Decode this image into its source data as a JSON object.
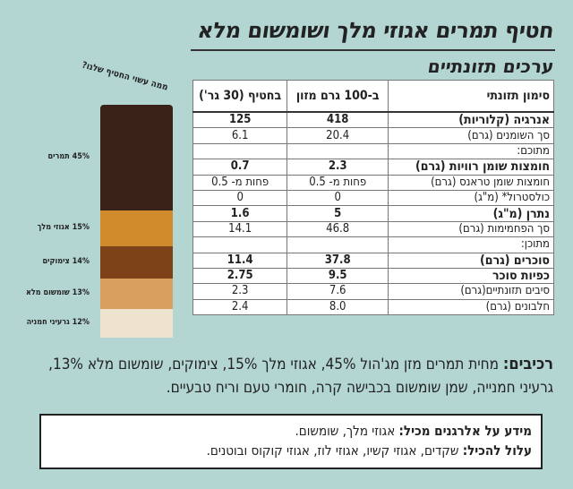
{
  "title": "חטיף תמרים אגוזי מלך ושומשום מלא",
  "subtitle": "ערכים תזונתיים",
  "table": {
    "headers": [
      "סימון תזונתי",
      "ב-100 גרם מזון",
      "בחטיף (30 גר')"
    ],
    "rows": [
      {
        "label": "אנרגיה (קלוריות)",
        "per100": "418",
        "perBar": "125",
        "bold": true
      },
      {
        "label": "סך השומנים (גרם)",
        "per100": "20.4",
        "perBar": "6.1",
        "bold": false
      },
      {
        "label": "מתוכם:",
        "per100": "",
        "perBar": "",
        "bold": false
      },
      {
        "label": "חומצות שומן רוויות (גרם)",
        "per100": "2.3",
        "perBar": "0.7",
        "bold": true
      },
      {
        "label": "חומצות שומן טראנס (גרם)",
        "per100": "פחות מ- 0.5",
        "perBar": "פחות מ- 0.5",
        "bold": false
      },
      {
        "label": "כולסטרול* (מ\"ג)",
        "per100": "0",
        "perBar": "0",
        "bold": false
      },
      {
        "label": "נתרן (מ\"ג)",
        "per100": "5",
        "perBar": "1.6",
        "bold": true
      },
      {
        "label": "סך הפחמימות (גרם)",
        "per100": "46.8",
        "perBar": "14.1",
        "bold": false
      },
      {
        "label": "מתוכן:",
        "per100": "",
        "perBar": "",
        "bold": false
      },
      {
        "label": "סוכרים (גרם)",
        "per100": "37.8",
        "perBar": "11.4",
        "bold": true
      },
      {
        "label": "כפיות סוכר",
        "per100": "9.5",
        "perBar": "2.75",
        "bold": true
      },
      {
        "label": "סיבים תזונתיים(גרם)",
        "per100": "7.6",
        "perBar": "2.3",
        "bold": false
      },
      {
        "label": "חלבונים (גרם)",
        "per100": "8.0",
        "perBar": "2.4",
        "bold": false
      }
    ]
  },
  "composition": {
    "heading": "ממה עשוי החטיף שלנו?",
    "segments": [
      {
        "label": "45% תמרים",
        "percent": 45,
        "color": "#3a2218"
      },
      {
        "label": "15% אגוזי מלך",
        "percent": 15,
        "color": "#d08b2c"
      },
      {
        "label": "14% צימוקים",
        "percent": 14,
        "color": "#7e4219"
      },
      {
        "label": "13% שומשום מלא",
        "percent": 13,
        "color": "#d99f5c"
      },
      {
        "label": "12% גרעיני חמניה",
        "percent": 12,
        "color": "#eee3cc"
      }
    ]
  },
  "ingredients": {
    "label": "רכיבים:",
    "text": " מחית תמרים מזן מג'הול 45%, אגוזי מלך 15%, צימוקים, שומשום מלא 13%, גרעיני חמנייה, שמן שומשום בכבישה קרה, חומרי טעם וריח טבעיים."
  },
  "allergens": {
    "contains_label": "מידע על אלרגנים מכיל:",
    "contains_value": " אגוזי מלך, שומשום.",
    "may_label": "עלול להכיל:",
    "may_value": " שקדים, אגוזי קשיו, אגוזי לוז, אגוזי קוקוס ובוטנים."
  }
}
